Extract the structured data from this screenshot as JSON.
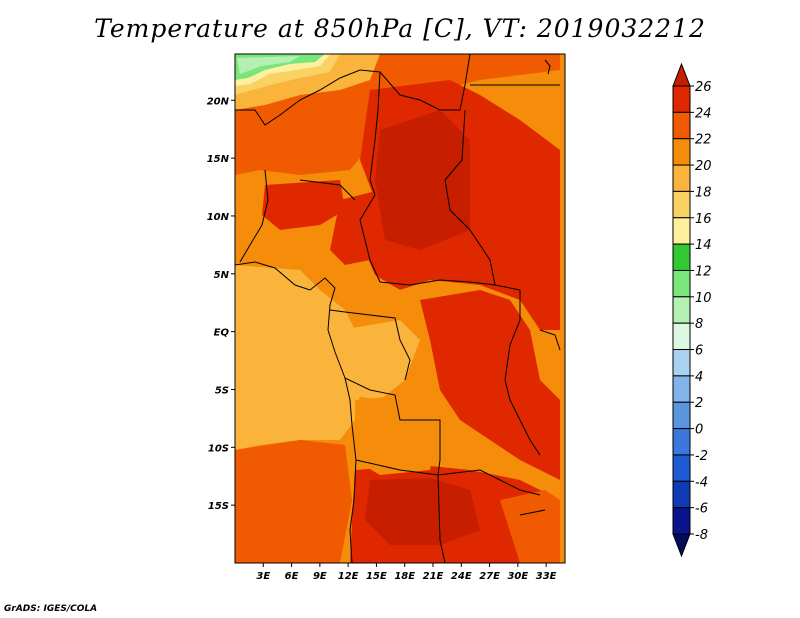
{
  "title": "Temperature at 850hPa [C], VT: 2019032212",
  "credit": "GrADS: IGES/COLA",
  "map": {
    "lon_range": [
      0,
      35
    ],
    "lat_range": [
      -20,
      24
    ],
    "y_ticks": [
      {
        "value": 20,
        "label": "20N"
      },
      {
        "value": 15,
        "label": "15N"
      },
      {
        "value": 10,
        "label": "10N"
      },
      {
        "value": 5,
        "label": "5N"
      },
      {
        "value": 0,
        "label": "EQ"
      },
      {
        "value": -5,
        "label": "5S"
      },
      {
        "value": -10,
        "label": "10S"
      },
      {
        "value": -15,
        "label": "15S"
      }
    ],
    "x_ticks": [
      {
        "value": 3,
        "label": "3E"
      },
      {
        "value": 6,
        "label": "6E"
      },
      {
        "value": 9,
        "label": "9E"
      },
      {
        "value": 12,
        "label": "12E"
      },
      {
        "value": 15,
        "label": "15E"
      },
      {
        "value": 18,
        "label": "18E"
      },
      {
        "value": 21,
        "label": "21E"
      },
      {
        "value": 24,
        "label": "24E"
      },
      {
        "value": 27,
        "label": "27E"
      },
      {
        "value": 30,
        "label": "30E"
      },
      {
        "value": 33,
        "label": "33E"
      }
    ]
  },
  "colorbar": {
    "levels": [
      "26",
      "24",
      "22",
      "20",
      "18",
      "16",
      "14",
      "12",
      "10",
      "8",
      "6",
      "4",
      "2",
      "0",
      "-2",
      "-4",
      "-6",
      "-8"
    ],
    "colors": [
      "#c81e00",
      "#e02800",
      "#f05a00",
      "#f58c0a",
      "#fab43c",
      "#fad264",
      "#fff0a0",
      "#32c832",
      "#78e678",
      "#b4f0b4",
      "#dcf8e0",
      "#aad2f0",
      "#82b4eb",
      "#5a96dc",
      "#3c78dc",
      "#1e5ad2",
      "#0f3cb4",
      "#0a148c",
      "#050a5a"
    ]
  }
}
